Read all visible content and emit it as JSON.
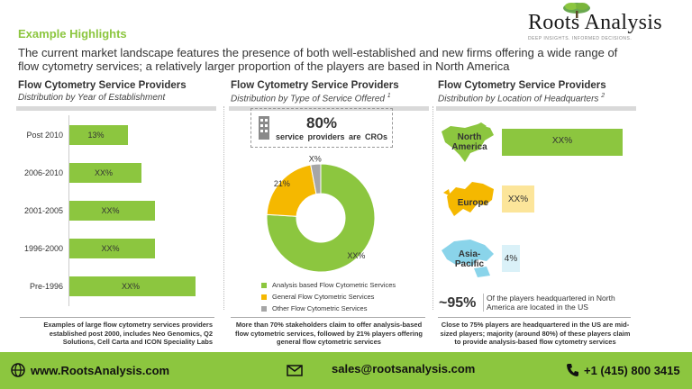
{
  "header": {
    "section_label": "Example Highlights",
    "headline": "The current market landscape features the presence of both well-established and new firms offering a wide range of flow cytometry services; a relatively larger proportion of the players are based in North America"
  },
  "logo": {
    "name": "Roots Analysis",
    "tagline": "DEEP INSIGHTS. INFORMED DECISIONS."
  },
  "panels": {
    "establishment": {
      "title": "Flow Cytometry Service Providers",
      "subtitle": "Distribution by Year of Establishment",
      "note": "Examples of large flow cytometry services providers established post 2000, includes Neo Genomics, Q2 Solutions, Cell Carta and ICON Speciality Labs"
    },
    "service_type": {
      "title": "Flow Cytometry Service Providers",
      "subtitle": "Distribution by Type of Service Offered",
      "subtitle_sup": "1",
      "callout_value": "80%",
      "callout_text": "service providers are CROs",
      "note": "More than 70% stakeholders claim to offer analysis-based flow cytometric services, followed by 21% players offering general flow cytometric services"
    },
    "location": {
      "title": "Flow Cytometry Service Providers",
      "subtitle": "Distribution by Location of Headquarters",
      "subtitle_sup": "2",
      "regions": [
        {
          "name_line1": "North",
          "name_line2": "America",
          "value": "XX%"
        },
        {
          "name_line1": "Europe",
          "name_line2": "",
          "value": "XX%"
        },
        {
          "name_line1": "Asia-",
          "name_line2": "Pacific",
          "value": "4%"
        }
      ],
      "big_pct": "~95%",
      "big_pct_text": "Of the players headquartered in North America are located in the US",
      "note": "Close to 75% players are headquartered in the US are mid-sized players; majority (around 80%) of these players claim to provide analysis-based flow cytometry services"
    }
  },
  "chart_data": [
    {
      "type": "bar",
      "orientation": "horizontal",
      "categories": [
        "Post 2010",
        "2006-2010",
        "2001-2005",
        "1996-2000",
        "Pre-1996"
      ],
      "values": [
        13,
        16,
        19,
        19,
        28
      ],
      "labels": [
        "13%",
        "XX%",
        "XX%",
        "XX%",
        "XX%"
      ],
      "xlim": [
        0,
        30
      ],
      "color": "#8cc63f"
    },
    {
      "type": "pie",
      "style": "donut",
      "slices": [
        {
          "name": "Analysis based Flow Cytometric Services",
          "value": 76,
          "label": "XX%",
          "color": "#8cc63f"
        },
        {
          "name": "General Flow Cytometric Services",
          "value": 21,
          "label": "21%",
          "color": "#f5b800"
        },
        {
          "name": "Other Flow Cytometric Services",
          "value": 3,
          "label": "X%",
          "color": "#a6a6a6"
        }
      ]
    }
  ],
  "footer": {
    "website": "www.RootsAnalysis.com",
    "email": "sales@rootsanalysis.com",
    "phone": "+1 (415) 800 3415"
  },
  "colors": {
    "accent": "#8cc63f",
    "yellow": "#f5b800",
    "grey": "#a6a6a6",
    "sky": "#8ad4ea"
  }
}
